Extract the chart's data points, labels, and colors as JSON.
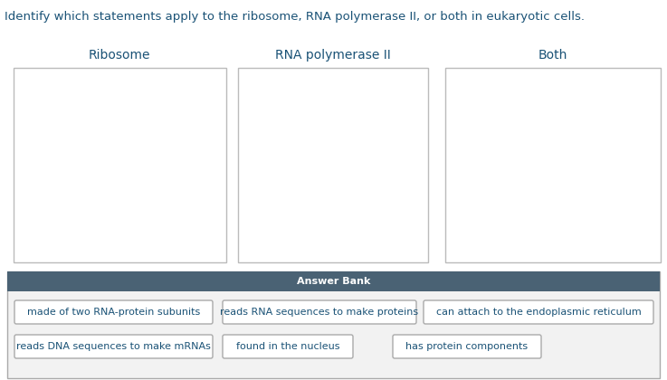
{
  "title": "Identify which statements apply to the ribosome, RNA polymerase II, or both in eukaryotic cells.",
  "title_color": "#1a5276",
  "title_fontsize": 9.5,
  "column_headers": [
    "Ribosome",
    "RNA polymerase II",
    "Both"
  ],
  "header_color": "#1a5276",
  "header_fontsize": 10,
  "answer_bank_bg": "#4A6274",
  "answer_bank_label": "Answer Bank",
  "answer_bank_label_color": "#FFFFFF",
  "answer_bank_label_fontsize": 8,
  "answer_items_row1": [
    "made of two RNA-protein subunits",
    "reads RNA sequences to make proteins",
    "can attach to the endoplasmic reticulum"
  ],
  "answer_items_row2": [
    "reads DNA sequences to make mRNAs",
    "found in the nucleus",
    "has protein components"
  ],
  "answer_item_color": "#1a5276",
  "answer_item_fontsize": 8,
  "bg_color": "#FFFFFF",
  "fig_width": 7.37,
  "fig_height": 4.2
}
